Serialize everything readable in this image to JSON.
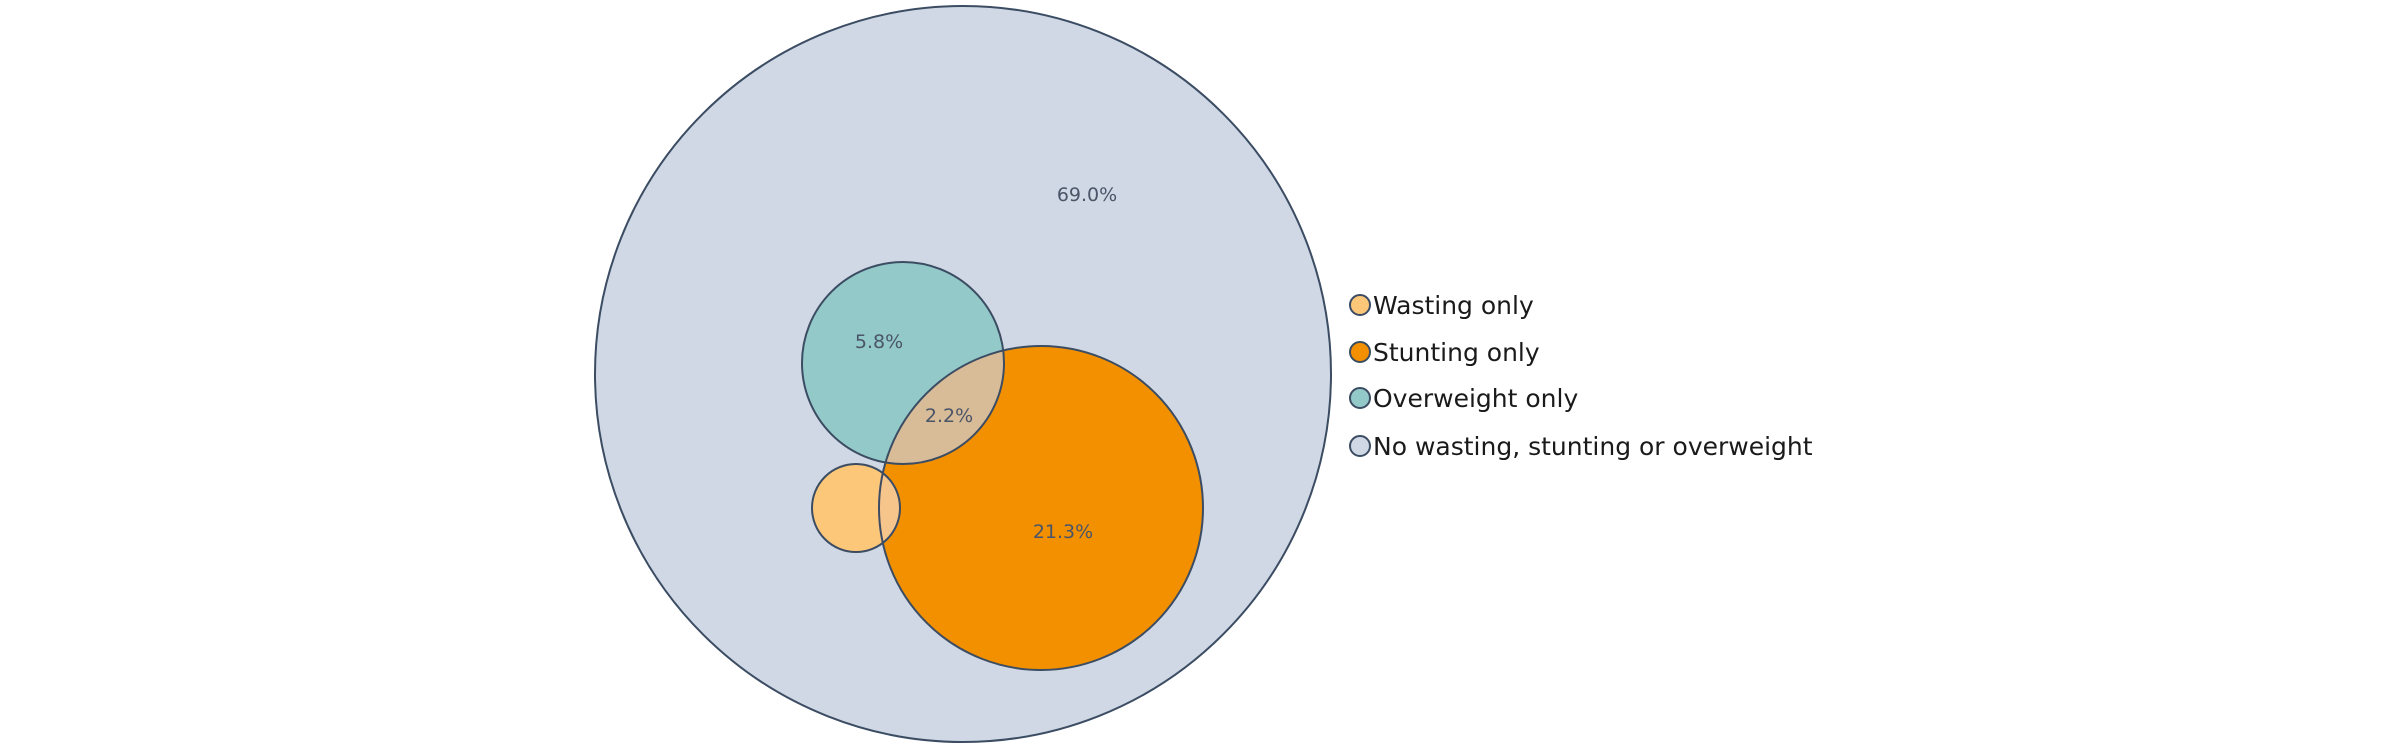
{
  "chart_data": {
    "type": "venn",
    "sets": [
      {
        "key": "total",
        "name": "No wasting, stunting or overweight",
        "color": "#cfd8e4"
      },
      {
        "key": "overweight",
        "name": "Overweight only",
        "color": "#93c9c9"
      },
      {
        "key": "stunting",
        "name": "Stunting only",
        "color": "#f29000"
      },
      {
        "key": "wasting",
        "name": "Wasting only",
        "color": "#fdc77a"
      }
    ],
    "regions": [
      {
        "key": "none",
        "label": "69.0%",
        "value": 69.0
      },
      {
        "key": "overweight_only",
        "label": "5.8%",
        "value": 5.8
      },
      {
        "key": "overweight_stunting",
        "label": "2.2%",
        "value": 2.2
      },
      {
        "key": "stunting_only",
        "label": "21.3%",
        "value": 21.3
      }
    ],
    "overlap_color": "#d8bc98",
    "wasting_stunting_overlap_color": "#f6c58c",
    "outline_color": "#3b4c63",
    "region_label_color": "#4a5568",
    "legend": {
      "position": "right",
      "items": [
        "Wasting only",
        "Stunting only",
        "Overweight only",
        "No wasting, stunting or overweight"
      ],
      "colors": [
        "#fdc77a",
        "#f29000",
        "#93c9c9",
        "#cfd8e4"
      ]
    }
  }
}
